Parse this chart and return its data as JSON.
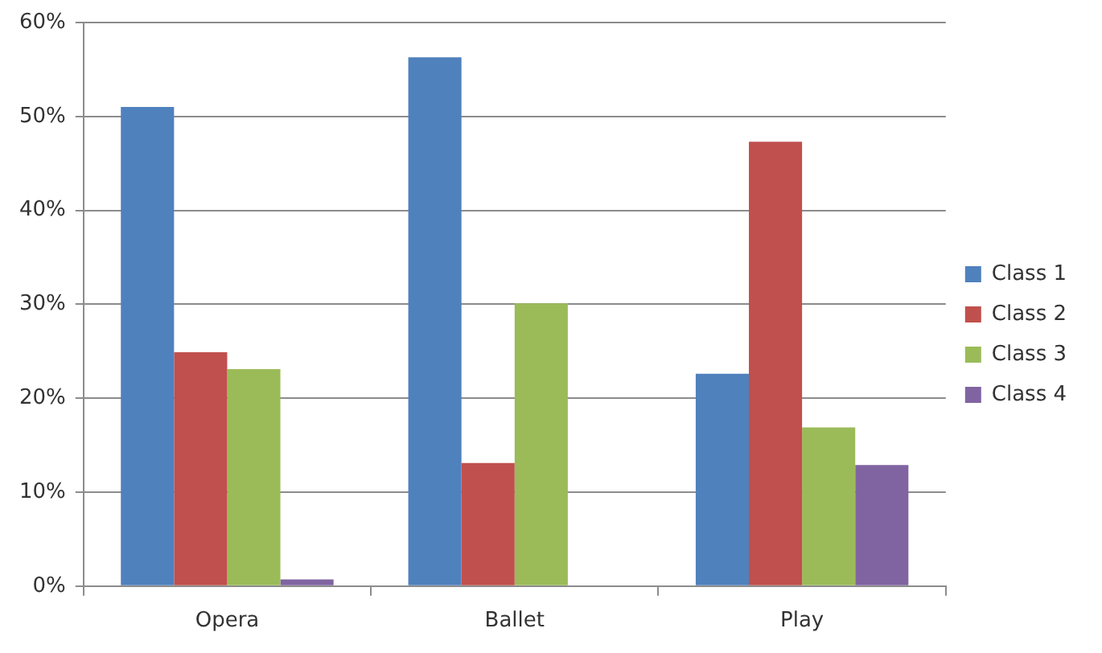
{
  "chart_data": {
    "type": "bar",
    "categories": [
      "Opera",
      "Ballet",
      "Play"
    ],
    "series": [
      {
        "name": "Class 1",
        "color": "#4f81bd",
        "values": [
          51.0,
          56.3,
          22.6
        ]
      },
      {
        "name": "Class 2",
        "color": "#c0504d",
        "values": [
          24.9,
          13.1,
          47.3
        ]
      },
      {
        "name": "Class 3",
        "color": "#9bbb59",
        "values": [
          23.1,
          30.1,
          16.9
        ]
      },
      {
        "name": "Class 4",
        "color": "#8064a2",
        "values": [
          0.7,
          0,
          12.9
        ]
      }
    ],
    "ylim": [
      0,
      60
    ],
    "yticks": [
      {
        "value": 0,
        "label": "0%"
      },
      {
        "value": 10,
        "label": "10%"
      },
      {
        "value": 20,
        "label": "20%"
      },
      {
        "value": 30,
        "label": "30%"
      },
      {
        "value": 40,
        "label": "40%"
      },
      {
        "value": 50,
        "label": "50%"
      },
      {
        "value": 60,
        "label": "60%"
      }
    ],
    "grid": "y",
    "legend": "right"
  }
}
